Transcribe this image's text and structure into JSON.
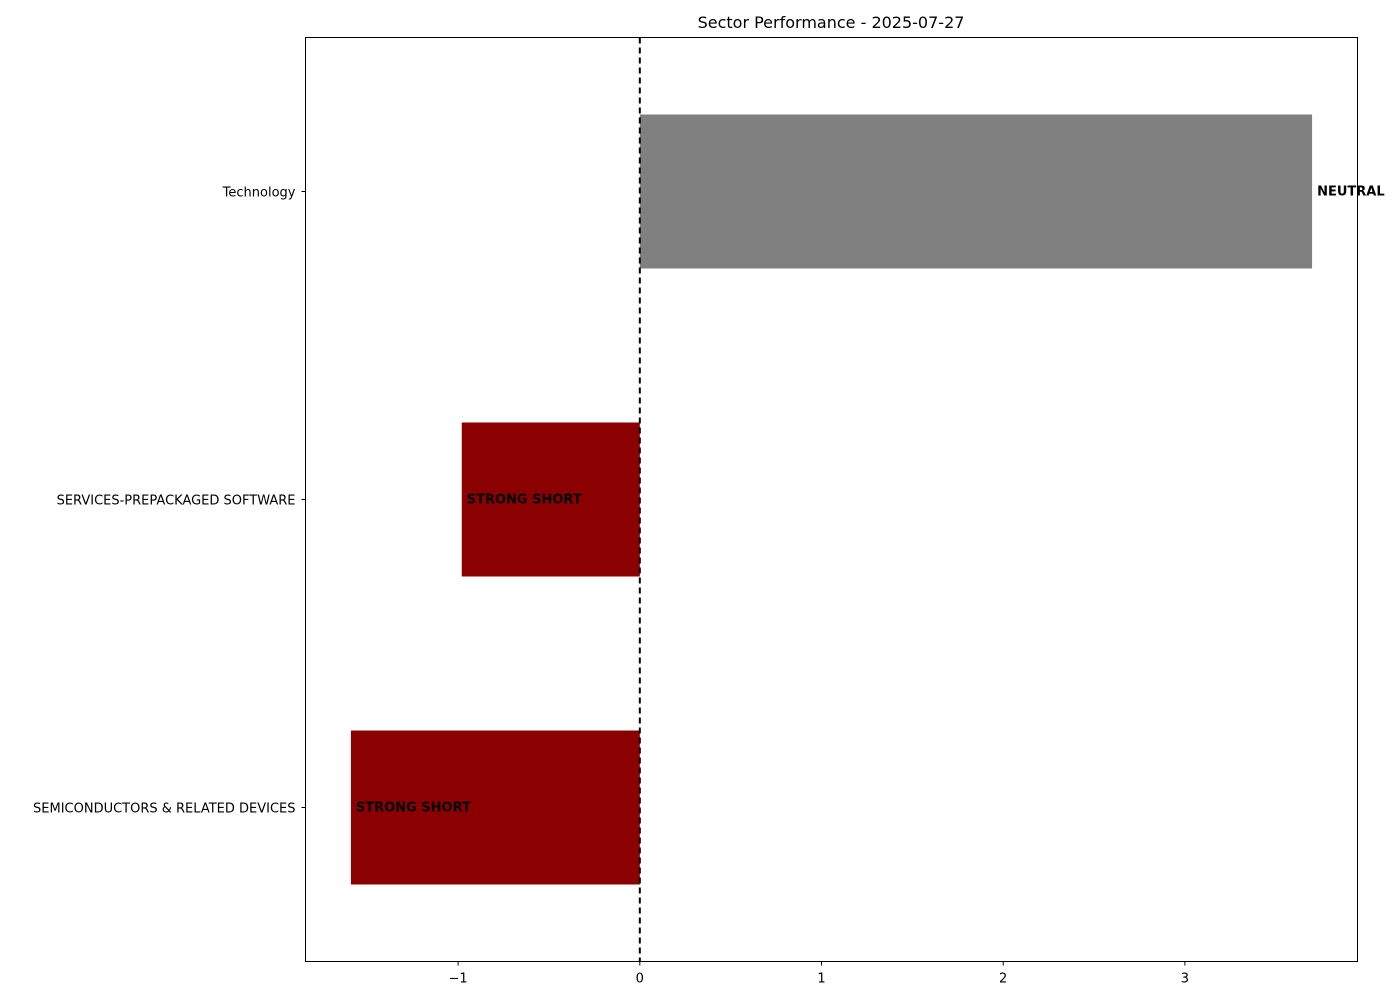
{
  "chart_data": {
    "type": "bar",
    "orientation": "horizontal",
    "title": "Sector Performance - 2025-07-27",
    "xlabel": "",
    "ylabel": "",
    "xlim": [
      -1.84,
      3.95
    ],
    "xticks": [
      -1,
      0,
      1,
      2,
      3
    ],
    "xtick_labels": [
      "−1",
      "0",
      "1",
      "2",
      "3"
    ],
    "categories": [
      "Technology",
      "SERVICES-PREPACKAGED SOFTWARE",
      "SEMICONDUCTORS & RELATED DEVICES"
    ],
    "values": [
      3.7,
      -0.98,
      -1.59
    ],
    "signals": [
      "NEUTRAL",
      "STRONG SHORT",
      "STRONG SHORT"
    ],
    "colors": [
      "#808080",
      "#8b0000",
      "#8b0000"
    ],
    "reference_line": {
      "x": 0,
      "style": "dashed",
      "color": "#000000"
    },
    "grid": false,
    "legend": "none"
  }
}
